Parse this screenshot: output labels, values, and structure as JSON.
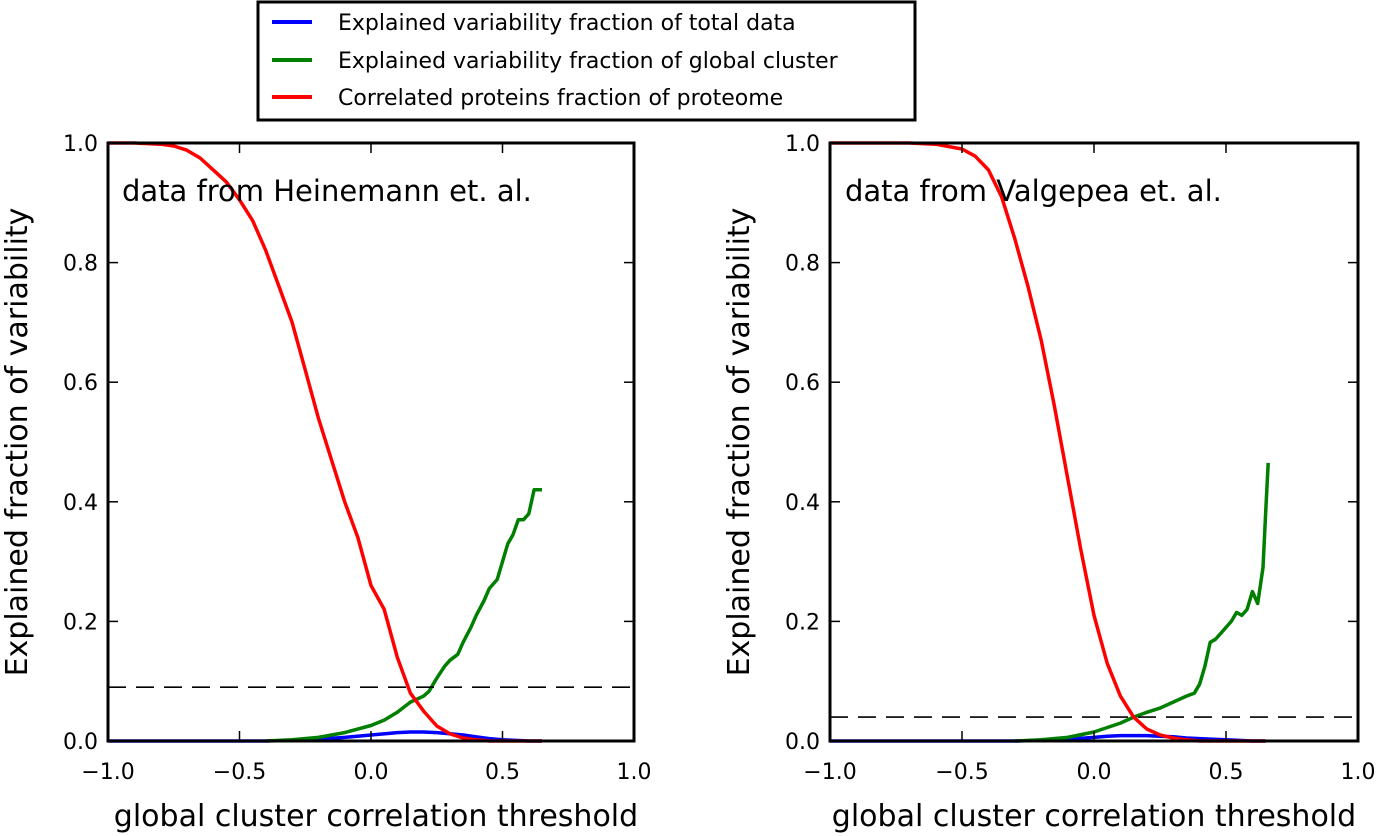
{
  "legend": {
    "placement": "top-center above plots",
    "entries": [
      {
        "label": "Explained variability fraction of total data",
        "color": "#0000ff"
      },
      {
        "label": "Explained variability fraction of global cluster",
        "color": "#007f00"
      },
      {
        "label": "Correlated proteins fraction of proteome",
        "color": "#ff0000"
      }
    ]
  },
  "chart_data": [
    {
      "type": "line",
      "annotation": "data from Heinemann et. al.",
      "xlabel": "global cluster correlation threshold",
      "ylabel": "Explained fraction of variability",
      "xlim": [
        -1.0,
        1.0
      ],
      "ylim": [
        0.0,
        1.0
      ],
      "x_ticks": [
        "−1.0",
        "−0.5",
        "0.0",
        "0.5",
        "1.0"
      ],
      "y_ticks": [
        "0.0",
        "0.2",
        "0.4",
        "0.6",
        "0.8",
        "1.0"
      ],
      "grid": false,
      "hline": {
        "y": 0.09,
        "style": "dashed",
        "color": "#000000"
      },
      "series": [
        {
          "name": "Explained variability fraction of total data",
          "color": "#0000ff",
          "x": [
            -1.0,
            -0.9,
            -0.8,
            -0.7,
            -0.6,
            -0.5,
            -0.4,
            -0.3,
            -0.2,
            -0.1,
            0.0,
            0.1,
            0.15,
            0.2,
            0.25,
            0.3,
            0.35,
            0.4,
            0.45,
            0.5,
            0.55,
            0.6,
            0.65
          ],
          "y": [
            0.0,
            0.0,
            0.0,
            0.0,
            0.0,
            0.0,
            0.0,
            0.001,
            0.003,
            0.006,
            0.01,
            0.014,
            0.015,
            0.015,
            0.014,
            0.012,
            0.01,
            0.007,
            0.004,
            0.002,
            0.001,
            0.0,
            0.0
          ]
        },
        {
          "name": "Explained variability fraction of global cluster",
          "color": "#007f00",
          "x": [
            -0.4,
            -0.3,
            -0.2,
            -0.1,
            0.0,
            0.05,
            0.1,
            0.15,
            0.2,
            0.22,
            0.25,
            0.28,
            0.3,
            0.33,
            0.35,
            0.38,
            0.4,
            0.43,
            0.45,
            0.48,
            0.5,
            0.52,
            0.54,
            0.56,
            0.58,
            0.6,
            0.62,
            0.65
          ],
          "y": [
            0.0,
            0.002,
            0.006,
            0.014,
            0.026,
            0.035,
            0.048,
            0.065,
            0.075,
            0.083,
            0.105,
            0.125,
            0.135,
            0.145,
            0.165,
            0.19,
            0.21,
            0.235,
            0.255,
            0.27,
            0.3,
            0.33,
            0.345,
            0.37,
            0.37,
            0.38,
            0.42,
            0.42
          ]
        },
        {
          "name": "Correlated proteins fraction of proteome",
          "color": "#ff0000",
          "x": [
            -1.0,
            -0.9,
            -0.8,
            -0.75,
            -0.7,
            -0.65,
            -0.6,
            -0.55,
            -0.5,
            -0.45,
            -0.4,
            -0.35,
            -0.3,
            -0.25,
            -0.2,
            -0.15,
            -0.1,
            -0.05,
            0.0,
            0.05,
            0.1,
            0.15,
            0.2,
            0.25,
            0.3,
            0.35,
            0.4,
            0.45,
            0.5,
            0.55,
            0.6,
            0.65
          ],
          "y": [
            1.0,
            1.0,
            0.998,
            0.995,
            0.988,
            0.975,
            0.955,
            0.935,
            0.905,
            0.87,
            0.82,
            0.76,
            0.7,
            0.62,
            0.54,
            0.47,
            0.4,
            0.34,
            0.26,
            0.22,
            0.14,
            0.08,
            0.05,
            0.025,
            0.012,
            0.005,
            0.002,
            0.0,
            0.0,
            0.0,
            0.0,
            0.0
          ]
        }
      ]
    },
    {
      "type": "line",
      "annotation": "data from Valgepea et. al.",
      "xlabel": "global cluster correlation threshold",
      "ylabel": "Explained fraction of variability",
      "xlim": [
        -1.0,
        1.0
      ],
      "ylim": [
        0.0,
        1.0
      ],
      "x_ticks": [
        "−1.0",
        "−0.5",
        "0.0",
        "0.5",
        "1.0"
      ],
      "y_ticks": [
        "0.0",
        "0.2",
        "0.4",
        "0.6",
        "0.8",
        "1.0"
      ],
      "grid": false,
      "hline": {
        "y": 0.04,
        "style": "dashed",
        "color": "#000000"
      },
      "series": [
        {
          "name": "Explained variability fraction of total data",
          "color": "#0000ff",
          "x": [
            -1.0,
            -0.9,
            -0.8,
            -0.7,
            -0.6,
            -0.5,
            -0.4,
            -0.3,
            -0.2,
            -0.1,
            0.0,
            0.05,
            0.1,
            0.15,
            0.2,
            0.25,
            0.3,
            0.35,
            0.4,
            0.45,
            0.5,
            0.55,
            0.6,
            0.65
          ],
          "y": [
            0.0,
            0.0,
            0.0,
            0.0,
            0.0,
            0.0,
            0.0,
            0.0,
            0.001,
            0.003,
            0.006,
            0.008,
            0.009,
            0.009,
            0.009,
            0.008,
            0.007,
            0.005,
            0.004,
            0.003,
            0.002,
            0.001,
            0.0,
            0.0
          ]
        },
        {
          "name": "Explained variability fraction of global cluster",
          "color": "#007f00",
          "x": [
            -0.3,
            -0.2,
            -0.1,
            0.0,
            0.1,
            0.15,
            0.2,
            0.25,
            0.3,
            0.35,
            0.38,
            0.4,
            0.42,
            0.44,
            0.46,
            0.48,
            0.5,
            0.52,
            0.54,
            0.56,
            0.58,
            0.6,
            0.62,
            0.64,
            0.65,
            0.66
          ],
          "y": [
            0.0,
            0.002,
            0.006,
            0.015,
            0.03,
            0.04,
            0.048,
            0.055,
            0.065,
            0.075,
            0.08,
            0.095,
            0.125,
            0.165,
            0.17,
            0.18,
            0.19,
            0.2,
            0.215,
            0.21,
            0.22,
            0.25,
            0.23,
            0.29,
            0.38,
            0.465
          ]
        },
        {
          "name": "Correlated proteins fraction of proteome",
          "color": "#ff0000",
          "x": [
            -1.0,
            -0.8,
            -0.7,
            -0.6,
            -0.5,
            -0.45,
            -0.4,
            -0.35,
            -0.3,
            -0.25,
            -0.2,
            -0.15,
            -0.1,
            -0.05,
            0.0,
            0.05,
            0.1,
            0.15,
            0.2,
            0.25,
            0.3,
            0.35,
            0.4,
            0.45,
            0.5,
            0.55,
            0.6,
            0.65
          ],
          "y": [
            1.0,
            1.0,
            1.0,
            0.998,
            0.99,
            0.978,
            0.955,
            0.91,
            0.84,
            0.76,
            0.67,
            0.56,
            0.44,
            0.32,
            0.21,
            0.13,
            0.075,
            0.04,
            0.02,
            0.01,
            0.005,
            0.002,
            0.0,
            0.0,
            0.0,
            0.0,
            0.0,
            0.0
          ]
        }
      ]
    }
  ]
}
